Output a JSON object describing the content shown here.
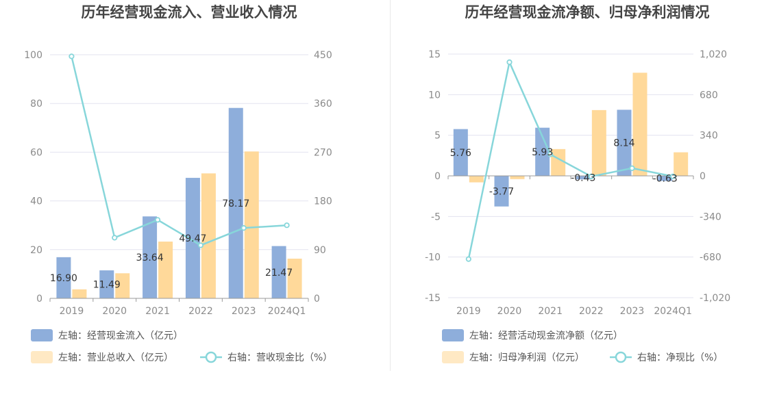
{
  "colors": {
    "bar_blue": "#8eaedb",
    "bar_orange": "#ffd99a",
    "bar_orange_legend": "#ffe9c4",
    "line": "#87d6da",
    "grid": "#e3e3ef",
    "axis": "#999999"
  },
  "chart_data": [
    {
      "type": "bar",
      "title": "历年经营现金流入、营业收入情况",
      "categories": [
        "2019",
        "2020",
        "2021",
        "2022",
        "2023",
        "2024Q1"
      ],
      "y_left": {
        "ticks": [
          "0",
          "20",
          "40",
          "60",
          "80",
          "100"
        ],
        "min": 0,
        "max": 100
      },
      "y_right": {
        "ticks": [
          "0",
          "90",
          "180",
          "270",
          "360",
          "450"
        ],
        "min": 0,
        "max": 450
      },
      "series": [
        {
          "name": "左轴：经营现金流入（亿元）",
          "kind": "bar",
          "axis": "left",
          "color": "#8eaedb",
          "values": [
            16.9,
            11.49,
            33.64,
            49.47,
            78.17,
            21.47
          ],
          "labels": [
            "16.90",
            "11.49",
            "33.64",
            "49.47",
            "78.17",
            "21.47"
          ]
        },
        {
          "name": "左轴：营业总收入（亿元）",
          "kind": "bar",
          "axis": "left",
          "color": "#ffd99a",
          "values": [
            3.7,
            10.3,
            23.3,
            51.3,
            60.3,
            16.3
          ]
        },
        {
          "name": "右轴：营收现金比（%）",
          "kind": "line",
          "axis": "right",
          "color": "#87d6da",
          "values": [
            447,
            112,
            145,
            98,
            130,
            135
          ]
        }
      ],
      "legend_position": "bottom-left"
    },
    {
      "type": "bar",
      "title": "历年经营现金流净额、归母净利润情况",
      "categories": [
        "2019",
        "2020",
        "2021",
        "2022",
        "2023",
        "2024Q1"
      ],
      "y_left": {
        "ticks": [
          "-15",
          "-10",
          "-5",
          "0",
          "5",
          "10",
          "15"
        ],
        "min": -15,
        "max": 15
      },
      "y_right": {
        "ticks": [
          "-1,020",
          "-680",
          "-340",
          "0",
          "340",
          "680",
          "1,020"
        ],
        "min": -1020,
        "max": 1020
      },
      "series": [
        {
          "name": "左轴：经营活动现金流净额（亿元）",
          "kind": "bar",
          "axis": "left",
          "color": "#8eaedb",
          "values": [
            5.76,
            -3.77,
            5.93,
            -0.43,
            8.14,
            -0.63
          ],
          "labels": [
            "5.76",
            "-3.77",
            "5.93",
            "-0.43",
            "8.14",
            "-0.63"
          ]
        },
        {
          "name": "左轴：归母净利润（亿元）",
          "kind": "bar",
          "axis": "left",
          "color": "#ffd99a",
          "values": [
            -0.8,
            -0.4,
            3.3,
            8.1,
            12.7,
            2.9
          ]
        },
        {
          "name": "右轴：净现比（%）",
          "kind": "line",
          "axis": "right",
          "color": "#87d6da",
          "values": [
            -697,
            952,
            180,
            -5,
            64,
            -4
          ]
        }
      ],
      "legend_position": "bottom-left"
    }
  ]
}
